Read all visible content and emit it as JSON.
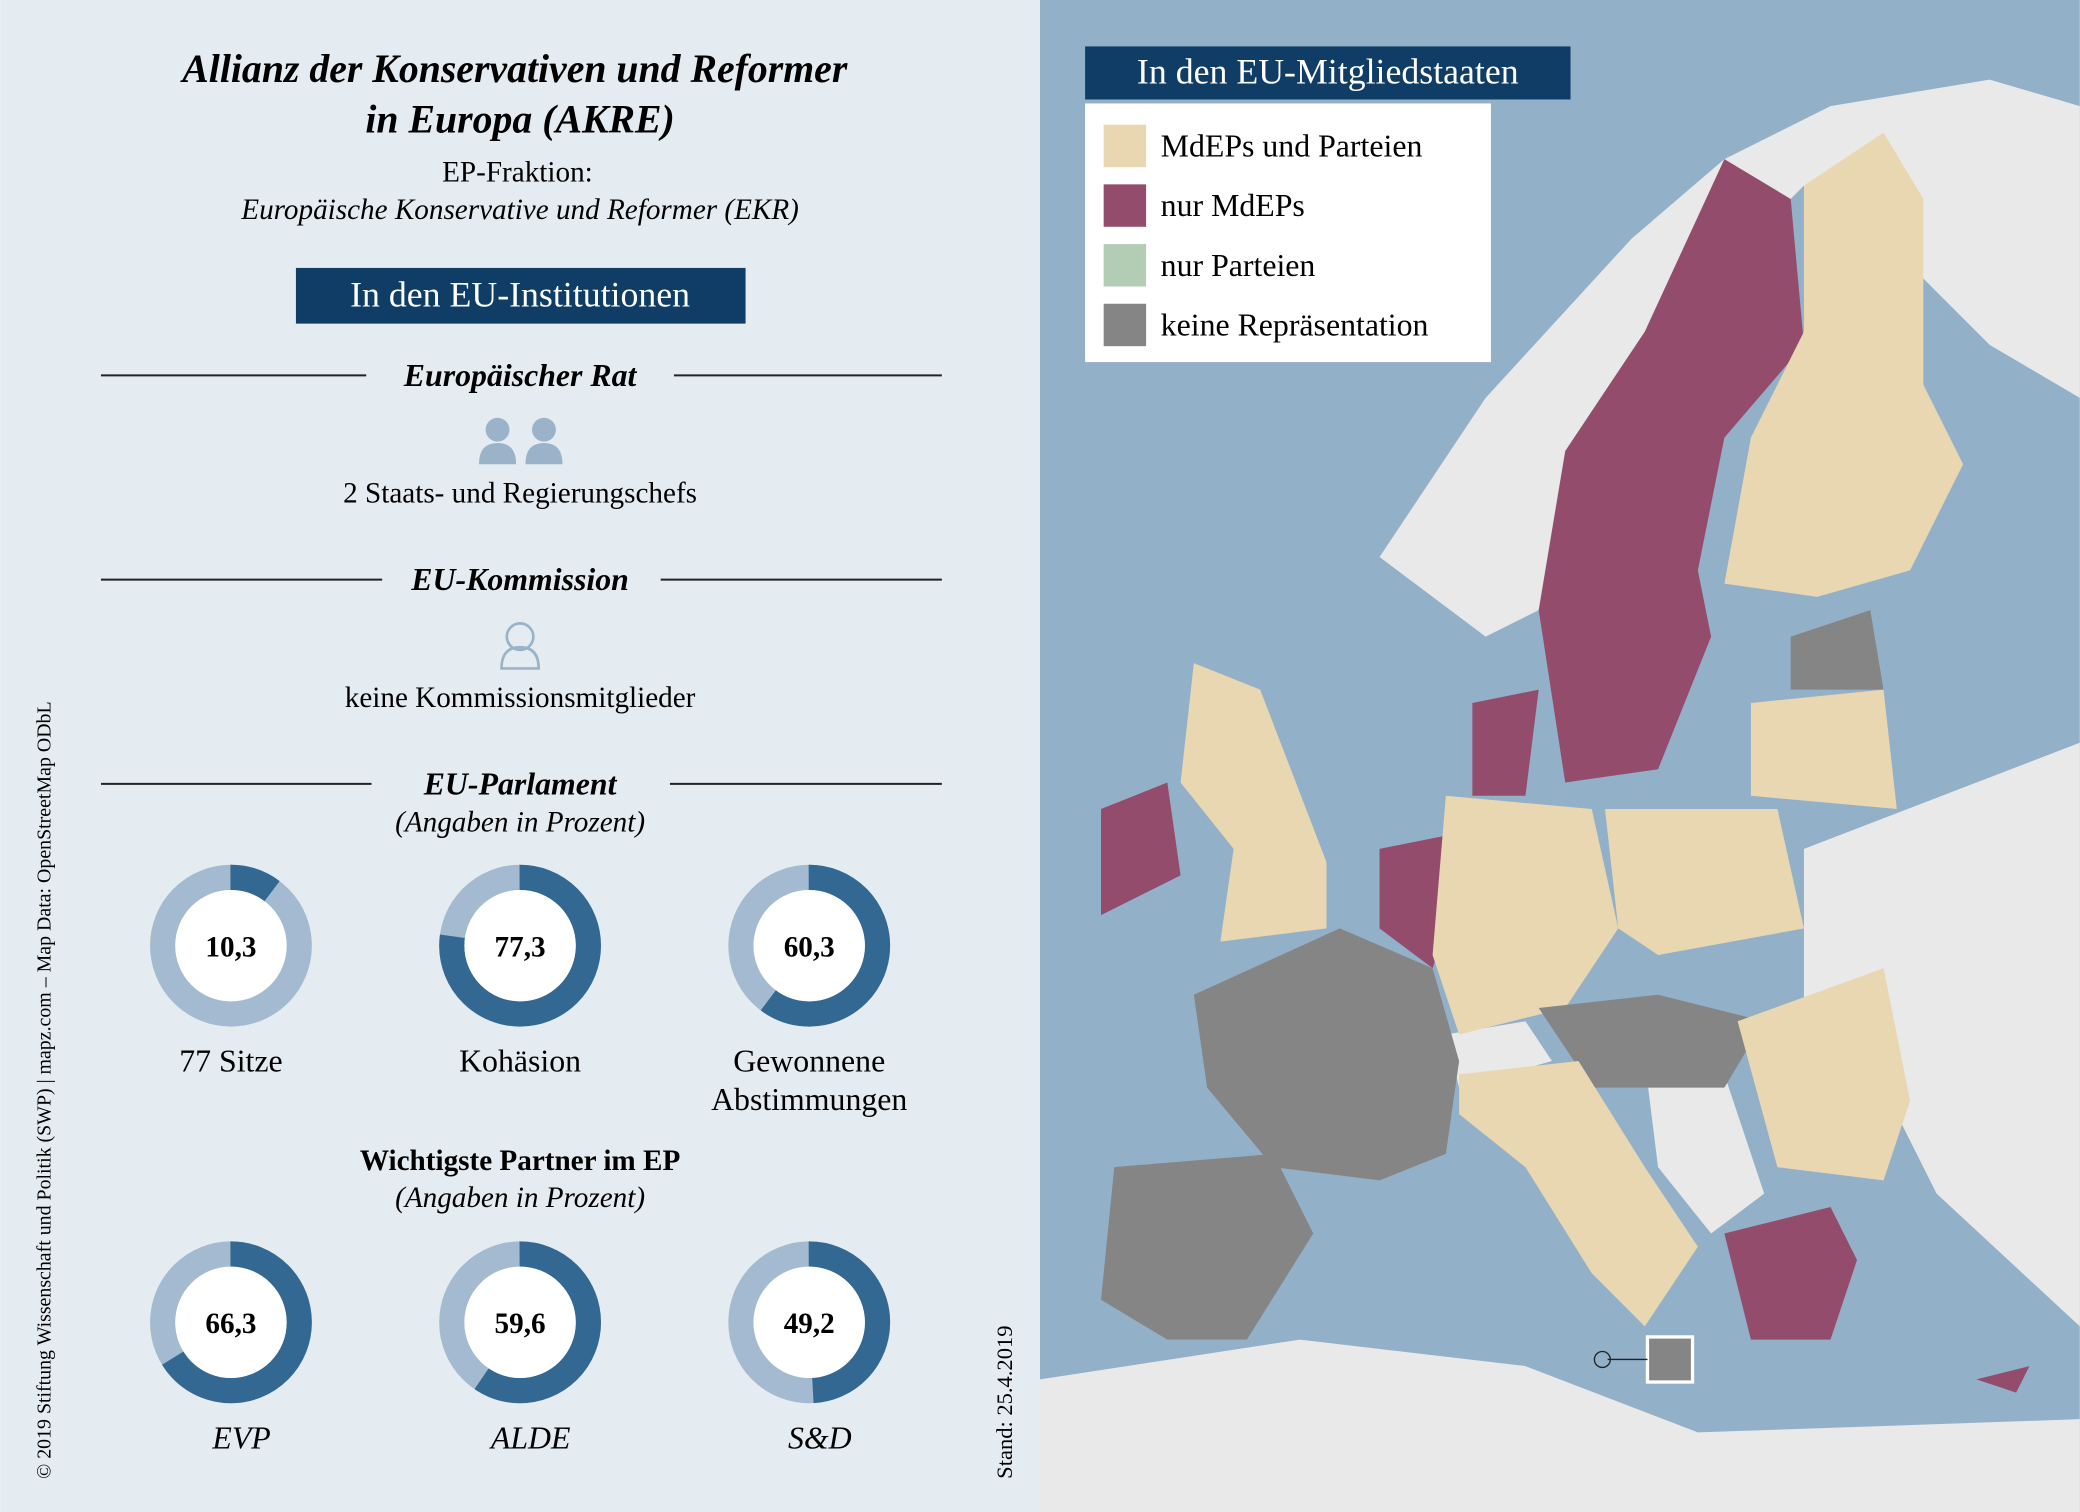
{
  "header": {
    "title_line1": "Allianz der Konservativen und Reformer",
    "title_line2": "in Europa (AKRE)",
    "subtitle_label": "EP-Fraktion:",
    "subtitle": "Europäische Konservative und Reformer (EKR)"
  },
  "institutions": {
    "heading": "In den EU-Institutionen",
    "council": {
      "title": "Europäischer Rat",
      "text": "2 Staats- und Regierungschefs"
    },
    "commission": {
      "title": "EU-Kommission",
      "text": "keine Kommissionsmitglieder"
    },
    "parliament": {
      "title": "EU-Parlament",
      "note": "(Angaben in Prozent)",
      "charts": [
        {
          "value": 10.3,
          "value_label": "10,3",
          "label_lines": [
            "77 Sitze"
          ]
        },
        {
          "value": 77.3,
          "value_label": "77,3",
          "label_lines": [
            "Kohäsion"
          ]
        },
        {
          "value": 60.3,
          "value_label": "60,3",
          "label_lines": [
            "Gewonnene",
            "Abstimmungen"
          ]
        }
      ]
    },
    "partners": {
      "title": "Wichtigste Partner im EP",
      "note": "(Angaben in Prozent)",
      "charts": [
        {
          "value": 66.3,
          "value_label": "66,3",
          "label_lines": [
            "EVP"
          ]
        },
        {
          "value": 59.6,
          "value_label": "59,6",
          "label_lines": [
            "ALDE"
          ]
        },
        {
          "value": 49.2,
          "value_label": "49,2",
          "label_lines": [
            "S&D"
          ]
        }
      ]
    }
  },
  "map": {
    "heading": "In den EU-Mitgliedstaaten",
    "legend": [
      {
        "label": "MdEPs und Parteien",
        "color": "#e8d7b0"
      },
      {
        "label": "nur MdEPs",
        "color": "#934c6c"
      },
      {
        "label": "nur Parteien",
        "color": "#b3cdb5"
      },
      {
        "label": "keine Repräsentation",
        "color": "#858585"
      }
    ]
  },
  "credit": "© 2019 Stiftung Wissenschaft und Politik (SWP) | mapz.com – Map Data: OpenStreetMap ODbL",
  "date": "Stand: 25.4.2019"
}
